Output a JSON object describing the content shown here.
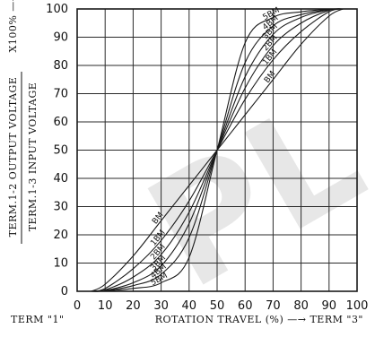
{
  "watermark_text": "PL",
  "chart_data": {
    "type": "line",
    "xlim": [
      0,
      100
    ],
    "ylim": [
      0,
      100
    ],
    "xticks": [
      0,
      10,
      20,
      30,
      40,
      50,
      60,
      70,
      80,
      90,
      100
    ],
    "yticks": [
      0,
      10,
      20,
      30,
      40,
      50,
      60,
      70,
      80,
      90,
      100
    ],
    "grid": true,
    "ylabel_line1": "TERM.1-2  OUTPUT VOLTAGE",
    "ylabel_line2": "TERM.1-3  INPUT VOLTAGE",
    "ylabel_suffix": "X100% —→",
    "xlabel_left": "TERM  \"1\"",
    "xlabel_center": "ROTATION  TRAVEL  (%) —→  TERM  \"3\"",
    "series": [
      {
        "name": "BM",
        "x": [
          5,
          10,
          20,
          30,
          40,
          50,
          60,
          70,
          80,
          90,
          95
        ],
        "y": [
          0,
          2.5,
          12.5,
          25,
          37.5,
          50,
          62.5,
          75,
          87.5,
          97.5,
          100
        ]
      },
      {
        "name": "1BM",
        "x": [
          5,
          10,
          20,
          30,
          40,
          50,
          60,
          70,
          80,
          90,
          95
        ],
        "y": [
          0,
          1,
          8,
          18,
          32,
          50,
          68,
          82,
          92,
          99,
          100
        ]
      },
      {
        "name": "2BM",
        "x": [
          5,
          10,
          20,
          30,
          40,
          50,
          60,
          70,
          80,
          90,
          95
        ],
        "y": [
          0,
          0.5,
          5,
          13,
          28,
          50,
          72,
          87,
          95,
          99.5,
          100
        ]
      },
      {
        "name": "3BM",
        "x": [
          5,
          10,
          20,
          30,
          40,
          50,
          60,
          70,
          80,
          90,
          95
        ],
        "y": [
          0,
          0.3,
          3,
          9,
          24,
          50,
          76,
          91,
          97,
          99.7,
          100
        ]
      },
      {
        "name": "4BM",
        "x": [
          5,
          10,
          20,
          30,
          40,
          50,
          60,
          70,
          80,
          90,
          95
        ],
        "y": [
          0,
          0.2,
          2,
          6,
          19,
          50,
          81,
          94,
          98,
          99.8,
          100
        ]
      },
      {
        "name": "5BM",
        "x": [
          5,
          10,
          20,
          30,
          40,
          50,
          60,
          70,
          80,
          90,
          95
        ],
        "y": [
          0,
          0.1,
          1,
          3,
          12,
          50,
          88,
          97,
          99,
          99.9,
          100
        ]
      }
    ]
  }
}
